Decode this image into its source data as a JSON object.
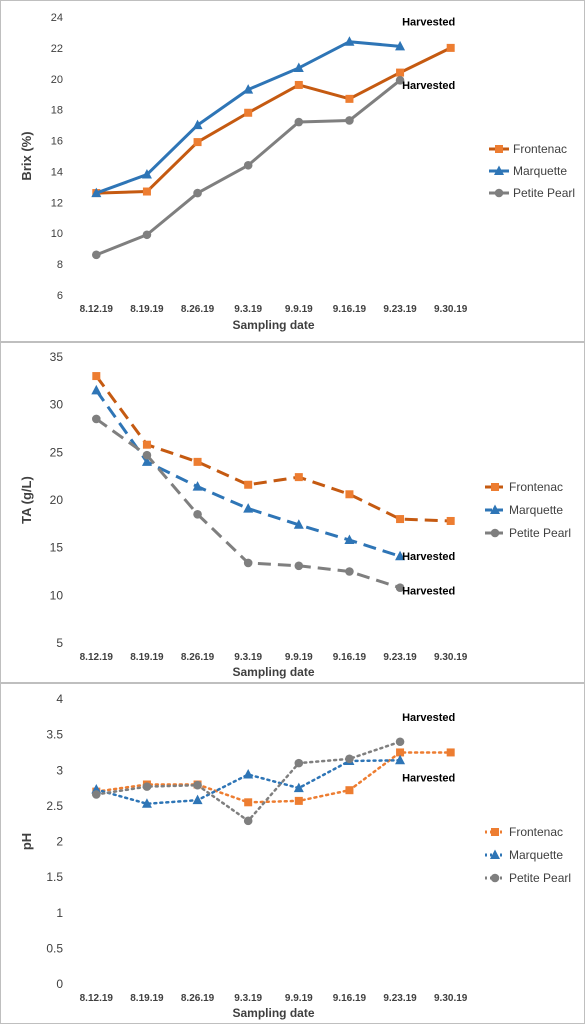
{
  "chart_data": [
    {
      "type": "line",
      "categories": [
        "8.12.19",
        "8.19.19",
        "8.26.19",
        "9.3.19",
        "9.9.19",
        "9.16.19",
        "9.23.19",
        "9.30.19"
      ],
      "xlabel": "Sampling date",
      "ylabel": "Brix (%)",
      "ylim": [
        6,
        24
      ],
      "yticks": [
        6,
        8,
        10,
        12,
        14,
        16,
        18,
        20,
        22,
        24
      ],
      "legend": "right",
      "line_style": "solid",
      "series": [
        {
          "name": "Frontenac",
          "color": "#C55A11",
          "marker_color": "#ED7D31",
          "marker": "square",
          "values": [
            12.6,
            12.7,
            15.9,
            17.8,
            19.6,
            18.7,
            20.4,
            22.0
          ]
        },
        {
          "name": "Marquette",
          "color": "#2E75B6",
          "marker_color": "#2E75B6",
          "marker": "triangle",
          "values": [
            12.6,
            13.8,
            17.0,
            19.3,
            20.7,
            22.4,
            22.1,
            null
          ]
        },
        {
          "name": "Petite Pearl",
          "color": "#7F7F7F",
          "marker_color": "#7F7F7F",
          "marker": "circle",
          "values": [
            8.6,
            9.9,
            12.6,
            14.4,
            17.2,
            17.3,
            19.9,
            null
          ]
        }
      ],
      "annotations": [
        {
          "text": "Harvested",
          "x": "9.23.19",
          "y": 23.7
        },
        {
          "text": "Harvested",
          "x": "9.23.19",
          "y": 19.6
        }
      ]
    },
    {
      "type": "line",
      "categories": [
        "8.12.19",
        "8.19.19",
        "8.26.19",
        "9.3.19",
        "9.9.19",
        "9.16.19",
        "9.23.19",
        "9.30.19"
      ],
      "xlabel": "Sampling date",
      "ylabel": "TA (g/L)",
      "ylim": [
        5,
        35
      ],
      "yticks": [
        5,
        10,
        15,
        20,
        25,
        30,
        35
      ],
      "legend": "right",
      "line_style": "dashed",
      "series": [
        {
          "name": "Frontenac",
          "color": "#C55A11",
          "marker_color": "#ED7D31",
          "marker": "square",
          "values": [
            33.0,
            25.8,
            24.0,
            21.6,
            22.4,
            20.6,
            18.0,
            17.8
          ]
        },
        {
          "name": "Marquette",
          "color": "#2E75B6",
          "marker_color": "#2E75B6",
          "marker": "triangle",
          "values": [
            31.5,
            24.0,
            21.4,
            19.1,
            17.4,
            15.8,
            14.1,
            null
          ]
        },
        {
          "name": "Petite Pearl",
          "color": "#7F7F7F",
          "marker_color": "#7F7F7F",
          "marker": "circle",
          "values": [
            28.5,
            24.7,
            18.5,
            13.4,
            13.1,
            12.5,
            10.8,
            null
          ]
        }
      ],
      "annotations": [
        {
          "text": "Harvested",
          "x": "9.23.19",
          "y": 14.1
        },
        {
          "text": "Harvested",
          "x": "9.23.19",
          "y": 10.5
        }
      ]
    },
    {
      "type": "line",
      "categories": [
        "8.12.19",
        "8.19.19",
        "8.26.19",
        "9.3.19",
        "9.9.19",
        "9.16.19",
        "9.23.19",
        "9.30.19"
      ],
      "xlabel": "Sampling date",
      "ylabel": "pH",
      "ylim": [
        0,
        4
      ],
      "yticks": [
        0,
        0.5,
        1,
        1.5,
        2,
        2.5,
        3,
        3.5,
        4
      ],
      "legend": "right",
      "line_style": "dotted",
      "series": [
        {
          "name": "Frontenac",
          "color": "#ED7D31",
          "marker_color": "#ED7D31",
          "marker": "square",
          "values": [
            2.7,
            2.8,
            2.8,
            2.55,
            2.57,
            2.72,
            3.25,
            3.25
          ]
        },
        {
          "name": "Marquette",
          "color": "#2E75B6",
          "marker_color": "#2E75B6",
          "marker": "triangle",
          "values": [
            2.73,
            2.53,
            2.58,
            2.94,
            2.75,
            3.13,
            3.14,
            null
          ]
        },
        {
          "name": "Petite Pearl",
          "color": "#7F7F7F",
          "marker_color": "#7F7F7F",
          "marker": "circle",
          "values": [
            2.66,
            2.77,
            2.79,
            2.29,
            3.1,
            3.16,
            3.4,
            null
          ]
        }
      ],
      "annotations": [
        {
          "text": "Harvested",
          "x": "9.23.19",
          "y": 3.75
        },
        {
          "text": "Harvested",
          "x": "9.23.19",
          "y": 2.9
        }
      ]
    }
  ]
}
